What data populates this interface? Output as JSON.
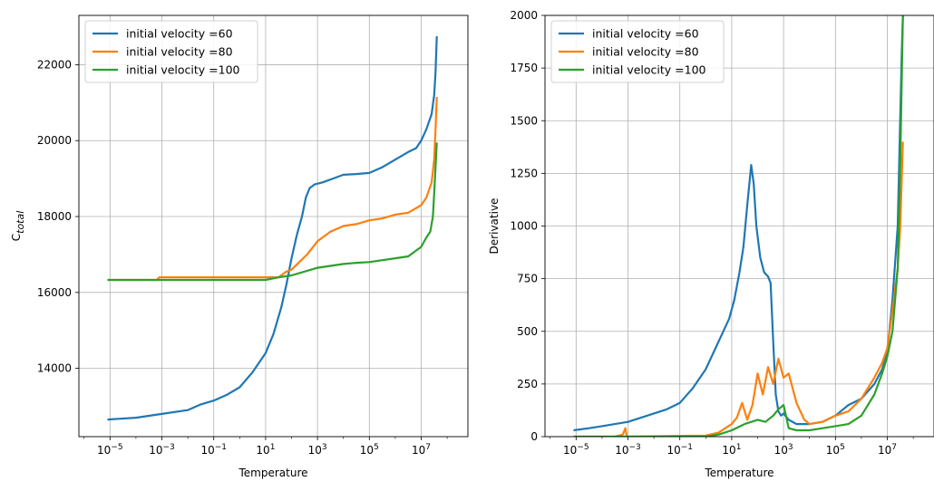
{
  "chart_data": [
    {
      "type": "line",
      "xscale": "log",
      "xlabel": "Temperature",
      "ylabel_base": "C",
      "ylabel_sub": "total",
      "xlim_log10": [
        -6.2,
        8.8
      ],
      "ylim": [
        12200,
        23300
      ],
      "xticks": [
        -5,
        -3,
        -1,
        1,
        3,
        5,
        7
      ],
      "yticks": [
        14000,
        16000,
        18000,
        20000,
        22000
      ],
      "grid": true,
      "legend_loc": "upper-left",
      "series": [
        {
          "name": "initial velocity =60",
          "color": "#1f77b4",
          "x_log10": [
            -5.1,
            -4,
            -3,
            -2,
            -1.5,
            -1,
            -0.5,
            0,
            0.5,
            1,
            1.3,
            1.6,
            1.8,
            2,
            2.2,
            2.4,
            2.55,
            2.7,
            2.9,
            3.2,
            3.6,
            4,
            4.5,
            5,
            5.5,
            6,
            6.5,
            6.8,
            7,
            7.2,
            7.4,
            7.5,
            7.55,
            7.6
          ],
          "values": [
            12650,
            12700,
            12800,
            12900,
            13050,
            13150,
            13300,
            13500,
            13900,
            14400,
            14900,
            15600,
            16200,
            16900,
            17500,
            18000,
            18500,
            18750,
            18850,
            18900,
            19000,
            19100,
            19120,
            19150,
            19300,
            19500,
            19700,
            19800,
            20000,
            20300,
            20700,
            21200,
            21800,
            22750
          ]
        },
        {
          "name": "initial velocity =80",
          "color": "#ff7f0e",
          "x_log10": [
            -5.1,
            -3.2,
            -3.1,
            1.5,
            1.8,
            2,
            2.3,
            2.6,
            3,
            3.5,
            4,
            4.5,
            5,
            5.5,
            6,
            6.5,
            7,
            7.2,
            7.4,
            7.5,
            7.55,
            7.6
          ],
          "values": [
            16330,
            16330,
            16400,
            16400,
            16550,
            16600,
            16800,
            17000,
            17350,
            17600,
            17750,
            17800,
            17900,
            17950,
            18050,
            18100,
            18300,
            18500,
            18900,
            19500,
            20300,
            21150
          ]
        },
        {
          "name": "initial velocity =100",
          "color": "#2ca02c",
          "x_log10": [
            -5.1,
            1,
            1.5,
            2,
            2.5,
            3,
            3.5,
            4,
            4.5,
            5,
            5.5,
            6,
            6.5,
            7,
            7.2,
            7.35,
            7.45,
            7.5,
            7.55,
            7.6
          ],
          "values": [
            16330,
            16330,
            16400,
            16450,
            16550,
            16650,
            16700,
            16750,
            16780,
            16800,
            16850,
            16900,
            16950,
            17200,
            17450,
            17600,
            18000,
            18600,
            19300,
            19950
          ]
        }
      ]
    },
    {
      "type": "line",
      "xscale": "log",
      "xlabel": "Temperature",
      "ylabel": "Derivative",
      "xlim_log10": [
        -6.2,
        8.8
      ],
      "ylim": [
        0,
        2000
      ],
      "xticks": [
        -5,
        -3,
        -1,
        1,
        3,
        5,
        7
      ],
      "yticks": [
        0,
        250,
        500,
        750,
        1000,
        1250,
        1500,
        1750,
        2000
      ],
      "grid": true,
      "legend_loc": "upper-left",
      "series": [
        {
          "name": "initial velocity =60",
          "color": "#1f77b4",
          "x_log10": [
            -5.1,
            -4.5,
            -4,
            -3.5,
            -3,
            -2.5,
            -2,
            -1.5,
            -1,
            -0.5,
            0,
            0.3,
            0.6,
            0.9,
            1.1,
            1.3,
            1.45,
            1.6,
            1.75,
            1.85,
            1.95,
            2.1,
            2.25,
            2.4,
            2.5,
            2.6,
            2.7,
            2.8,
            2.9,
            3,
            3.2,
            3.5,
            4,
            4.5,
            5,
            5.5,
            6,
            6.5,
            6.8,
            7,
            7.2,
            7.4,
            7.55,
            7.6
          ],
          "values": [
            30,
            40,
            50,
            60,
            70,
            90,
            110,
            130,
            160,
            230,
            320,
            400,
            480,
            560,
            650,
            780,
            900,
            1100,
            1290,
            1200,
            1000,
            850,
            780,
            760,
            730,
            450,
            200,
            120,
            100,
            110,
            80,
            60,
            60,
            70,
            100,
            150,
            180,
            250,
            320,
            400,
            650,
            1000,
            1800,
            2000
          ]
        },
        {
          "name": "initial velocity =80",
          "color": "#ff7f0e",
          "x_log10": [
            -5.1,
            -3.5,
            -3.2,
            -3.1,
            -3.05,
            0,
            0.5,
            1,
            1.2,
            1.4,
            1.6,
            1.8,
            2,
            2.2,
            2.4,
            2.6,
            2.8,
            3,
            3.2,
            3.5,
            3.8,
            4,
            4.5,
            5,
            5.5,
            6,
            6.5,
            6.8,
            7,
            7.2,
            7.4,
            7.5,
            7.6
          ],
          "values": [
            0,
            0,
            10,
            40,
            0,
            5,
            20,
            60,
            90,
            160,
            80,
            150,
            300,
            200,
            330,
            250,
            370,
            280,
            300,
            160,
            80,
            60,
            70,
            100,
            120,
            180,
            280,
            350,
            420,
            600,
            800,
            1000,
            1400
          ]
        },
        {
          "name": "initial velocity =100",
          "color": "#2ca02c",
          "x_log10": [
            -5.1,
            0,
            0.5,
            1,
            1.5,
            2,
            2.3,
            2.6,
            2.8,
            3,
            3.2,
            3.5,
            4,
            4.5,
            5,
            5.5,
            6,
            6.5,
            6.8,
            7,
            7.2,
            7.4,
            7.5,
            7.6
          ],
          "values": [
            0,
            0,
            10,
            30,
            60,
            80,
            70,
            100,
            130,
            150,
            40,
            30,
            30,
            40,
            50,
            60,
            100,
            200,
            300,
            380,
            500,
            800,
            1300,
            2000
          ]
        }
      ]
    }
  ]
}
